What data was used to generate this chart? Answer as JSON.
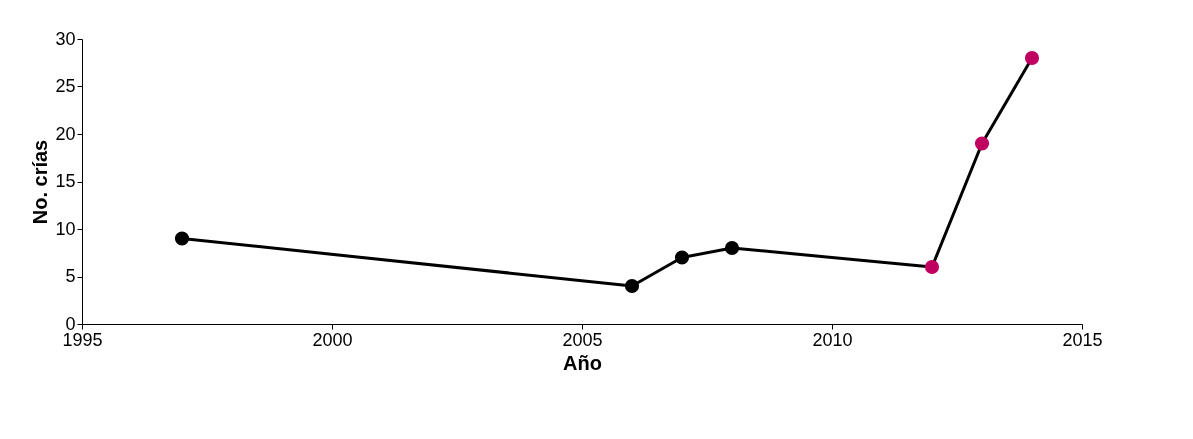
{
  "chart_data": {
    "type": "line",
    "xlabel": "Año",
    "ylabel": "No. crías",
    "x": [
      1997,
      2006,
      2007,
      2008,
      2012,
      2013,
      2014
    ],
    "series": [
      {
        "color": "#000000",
        "colors": [
          "#000000",
          "#000000",
          "#000000",
          "#000000",
          "#c00060",
          "#c00060",
          "#c00060"
        ],
        "values": [
          9,
          4,
          7,
          8,
          6,
          19,
          28
        ]
      }
    ],
    "xlim": [
      1995,
      2015
    ],
    "xticks": [
      1995,
      2000,
      2005,
      2010,
      2015
    ],
    "ylim": [
      0,
      30
    ],
    "yticks": [
      0,
      5,
      10,
      15,
      20,
      25,
      30
    ],
    "grid": false,
    "legend": false,
    "marker": "circle",
    "line_style": "solid"
  }
}
